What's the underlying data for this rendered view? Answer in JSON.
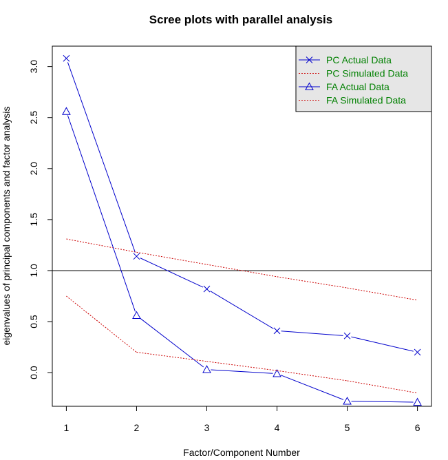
{
  "chart_data": {
    "type": "line",
    "title": "Scree plots with parallel analysis",
    "xlabel": "Factor/Component Number",
    "ylabel": "eigenvalues of principal components and factor analysis",
    "x": [
      1,
      2,
      3,
      4,
      5,
      6
    ],
    "x_ticks": [
      "1",
      "2",
      "3",
      "4",
      "5",
      "6"
    ],
    "y_ticks": [
      "0.0",
      "0.5",
      "1.0",
      "1.5",
      "2.0",
      "2.5",
      "3.0"
    ],
    "xlim": [
      0.8,
      6.2
    ],
    "ylim": [
      -0.33,
      3.2
    ],
    "reference_line": 1.0,
    "grid": false,
    "legend_position": "top-right",
    "series": [
      {
        "name": "PC  Actual Data",
        "values": [
          3.08,
          1.14,
          0.82,
          0.41,
          0.36,
          0.2
        ],
        "color": "#0000cc",
        "line_style": "solid",
        "marker": "x"
      },
      {
        "name": " PC  Simulated Data",
        "values": [
          1.31,
          1.18,
          1.06,
          0.94,
          0.83,
          0.71
        ],
        "color": "#cc0000",
        "line_style": "dotted",
        "marker": "none"
      },
      {
        "name": "FA  Actual Data",
        "values": [
          2.56,
          0.56,
          0.03,
          -0.01,
          -0.28,
          -0.29
        ],
        "color": "#0000cc",
        "line_style": "solid",
        "marker": "triangle"
      },
      {
        "name": " FA  Simulated Data",
        "values": [
          0.75,
          0.2,
          0.11,
          0.02,
          -0.08,
          -0.2
        ],
        "color": "#cc0000",
        "line_style": "dotted",
        "marker": "none"
      }
    ],
    "colors": {
      "legend_background": "#e6e6e6",
      "legend_text": "#008000",
      "reference_line": "#000000"
    }
  }
}
